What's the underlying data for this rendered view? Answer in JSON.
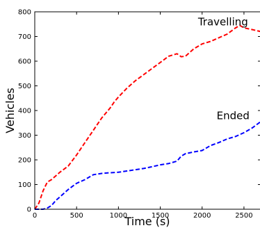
{
  "chart_data": {
    "type": "line",
    "xlabel": "Time (s)",
    "ylabel": "Vehicles",
    "xlim": [
      0,
      2700
    ],
    "ylim": [
      0,
      800
    ],
    "xticks": [
      0,
      500,
      1000,
      1500,
      2000,
      2500
    ],
    "yticks": [
      0,
      100,
      200,
      300,
      400,
      500,
      600,
      700,
      800
    ],
    "grid": false,
    "legend": "none",
    "annotations": [
      {
        "text": "Travelling",
        "x": 2250,
        "y": 745
      },
      {
        "text": "Ended",
        "x": 2370,
        "y": 365
      }
    ],
    "series": [
      {
        "color": "#ff0000",
        "style": "dashed",
        "x": [
          0,
          50,
          100,
          150,
          200,
          250,
          300,
          400,
          500,
          600,
          700,
          800,
          900,
          950,
          1000,
          1100,
          1200,
          1300,
          1400,
          1500,
          1600,
          1700,
          1750,
          1800,
          1850,
          1900,
          2000,
          2100,
          2200,
          2300,
          2400,
          2450,
          2500,
          2600,
          2700
        ],
        "values": [
          0,
          25,
          75,
          110,
          120,
          135,
          150,
          175,
          220,
          270,
          320,
          370,
          410,
          435,
          455,
          490,
          520,
          545,
          570,
          595,
          620,
          630,
          618,
          620,
          635,
          650,
          670,
          680,
          695,
          710,
          735,
          745,
          735,
          728,
          720
        ]
      },
      {
        "color": "#0000ff",
        "style": "dashed",
        "x": [
          0,
          100,
          150,
          200,
          250,
          300,
          400,
          500,
          600,
          700,
          800,
          900,
          1000,
          1100,
          1200,
          1300,
          1400,
          1500,
          1600,
          1700,
          1750,
          1800,
          1900,
          2000,
          2100,
          2200,
          2300,
          2400,
          2500,
          2600,
          2700
        ],
        "values": [
          0,
          0,
          5,
          15,
          35,
          50,
          80,
          105,
          120,
          140,
          145,
          148,
          150,
          155,
          160,
          165,
          172,
          180,
          185,
          195,
          215,
          225,
          232,
          238,
          258,
          270,
          285,
          295,
          310,
          330,
          355
        ]
      }
    ]
  }
}
